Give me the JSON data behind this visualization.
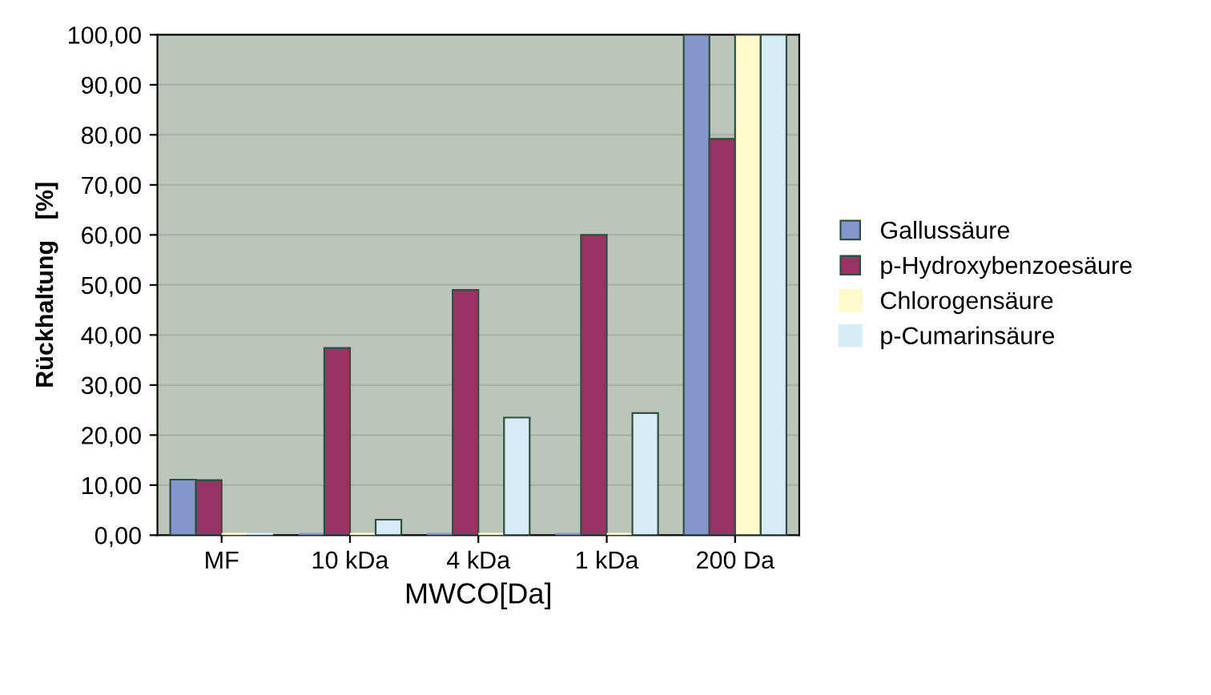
{
  "chart_data": {
    "type": "bar",
    "xlabel": "MWCO[Da]",
    "ylabel": "Rückhaltung   [%]",
    "categories": [
      "MF",
      "10 kDa",
      "4 kDa",
      "1 kDa",
      "200 Da"
    ],
    "series": [
      {
        "name": "Gallussäure",
        "color": "#8497cc",
        "values": [
          11.1,
          0,
          0,
          0,
          100
        ]
      },
      {
        "name": "p-Hydroxybenzoesäure",
        "color": "#993366",
        "values": [
          11,
          37.4,
          49,
          60,
          79.2
        ]
      },
      {
        "name": "Chlorogensäure",
        "color": "#fffacc",
        "values": [
          0,
          0,
          0,
          0,
          100
        ]
      },
      {
        "name": "p-Cumarinsäure",
        "color": "#d6ecf8",
        "values": [
          0,
          3.1,
          23.5,
          24.4,
          100
        ]
      }
    ],
    "ylim": [
      0,
      100
    ],
    "yticks": [
      {
        "value": 0,
        "label": "0,00"
      },
      {
        "value": 10,
        "label": "10,00"
      },
      {
        "value": 20,
        "label": "20,00"
      },
      {
        "value": 30,
        "label": "30,00"
      },
      {
        "value": 40,
        "label": "40,00"
      },
      {
        "value": 50,
        "label": "50,00"
      },
      {
        "value": 60,
        "label": "60,00"
      },
      {
        "value": 70,
        "label": "70,00"
      },
      {
        "value": 80,
        "label": "80,00"
      },
      {
        "value": 90,
        "label": "90,00"
      },
      {
        "value": 100,
        "label": "100,00"
      }
    ],
    "grid": "y",
    "legend": "right"
  }
}
